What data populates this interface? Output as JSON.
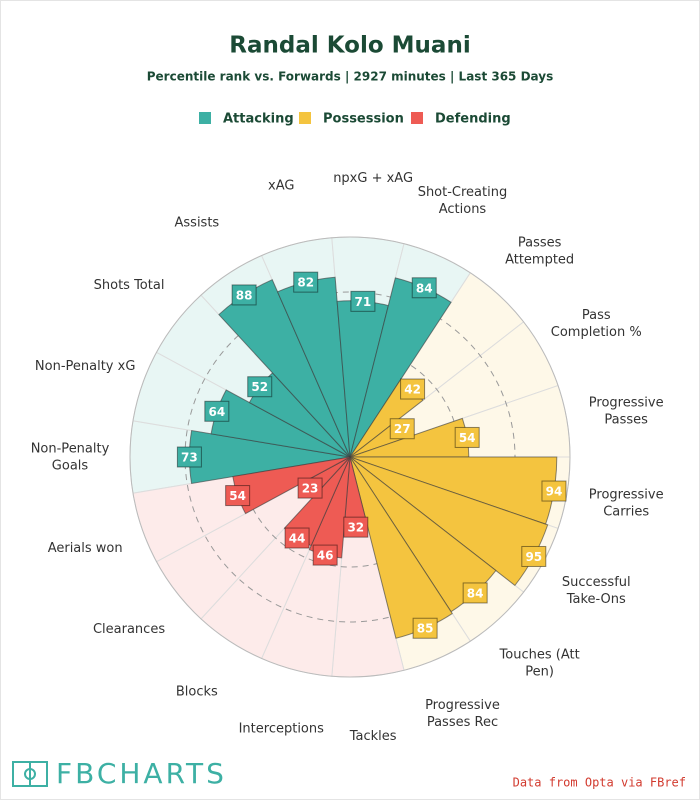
{
  "chart_data": {
    "type": "polar_bar",
    "title": "Randal Kolo Muani",
    "subtitle": "Percentile rank vs. Forwards | 2927 minutes | Last 365 Days",
    "ylim": [
      0,
      100
    ],
    "yticks": [
      50,
      75
    ],
    "series": [
      {
        "name": "Attacking",
        "color": "#3db0a4",
        "categories": [
          "Non-Penalty Goals",
          "Non-Penalty xG",
          "Shots Total",
          "Assists",
          "xAG",
          "npxG + xAG",
          "Shot-Creating Actions"
        ],
        "values": [
          73,
          64,
          52,
          88,
          82,
          71,
          84
        ]
      },
      {
        "name": "Possession",
        "color": "#f4c43f",
        "categories": [
          "Passes Attempted",
          "Pass Completion %",
          "Progressive Passes",
          "Progressive Carries",
          "Successful Take-Ons",
          "Touches (Att Pen)",
          "Progressive Passes Rec"
        ],
        "values": [
          42,
          27,
          54,
          94,
          95,
          84,
          85
        ]
      },
      {
        "name": "Defending",
        "color": "#ee5b54",
        "categories": [
          "Tackles",
          "Interceptions",
          "Blocks",
          "Clearances",
          "Aerials won"
        ],
        "values": [
          32,
          46,
          44,
          23,
          54
        ]
      }
    ],
    "brand": "FBCHARTS",
    "source": "Data from Opta via FBref"
  }
}
